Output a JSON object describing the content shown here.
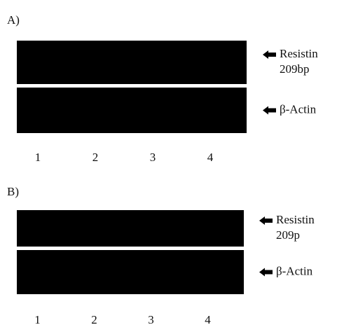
{
  "panels": [
    {
      "label": "A)",
      "bands": [
        {
          "lines": [
            "Resistin",
            "209bp"
          ]
        },
        {
          "lines": [
            "β-Actin"
          ]
        }
      ],
      "lanes": [
        "1",
        "2",
        "3",
        "4"
      ]
    },
    {
      "label": "B)",
      "bands": [
        {
          "lines": [
            "Resistin",
            "209p"
          ]
        },
        {
          "lines": [
            "β-Actin"
          ]
        }
      ],
      "lanes": [
        "1",
        "2",
        "3",
        "4"
      ]
    }
  ]
}
